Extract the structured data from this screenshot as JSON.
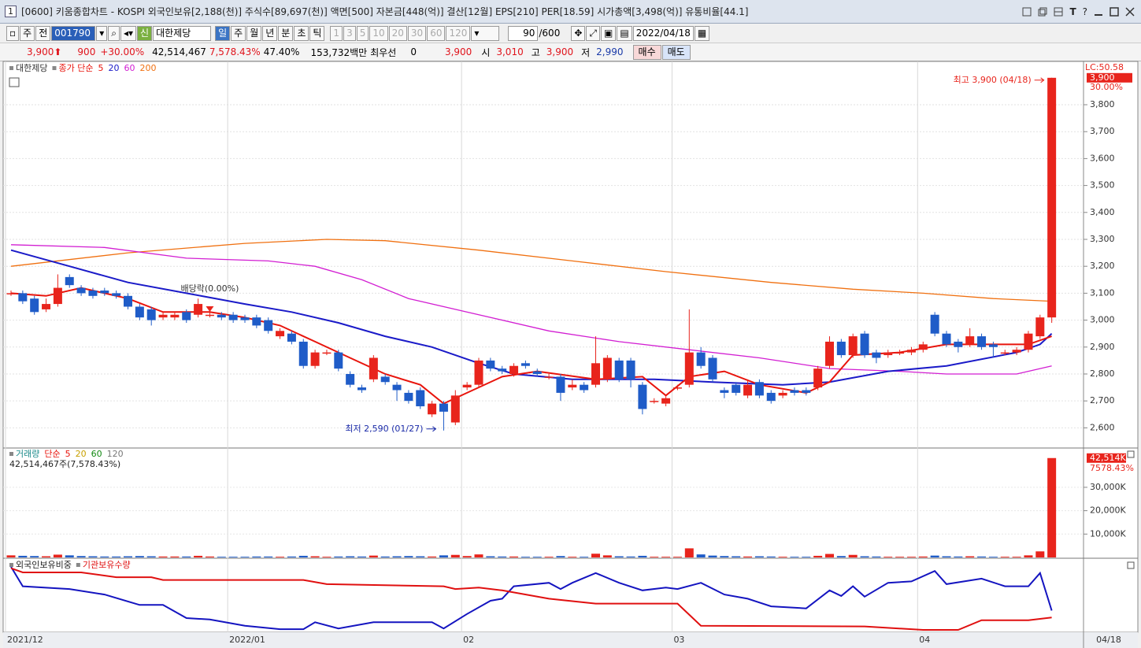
{
  "window": {
    "badge": "1",
    "title": "[0600] 키움종합차트 - KOSPI 외국인보유[2,188(천)] 주식수[89,697(천)] 액면[500] 자본금[448(억)] 결산[12월] EPS[210] PER[18.59] 시가총액[3,498(억)] 유통비율[44.1]",
    "icons": [
      "T",
      "?"
    ]
  },
  "toolbar": {
    "buttons": [
      "주",
      "전"
    ],
    "code": "001790",
    "badge": "신",
    "stock": "대한제당",
    "periods": [
      "일",
      "주",
      "월",
      "년",
      "분",
      "초",
      "틱"
    ],
    "minutes": [
      "1",
      "3",
      "5",
      "10",
      "20",
      "30",
      "60",
      "120"
    ],
    "count": "90",
    "total": "/600",
    "date": "2022/04/18"
  },
  "quote": {
    "price": "3,900",
    "change": "900",
    "rate": "+30.00%",
    "volume": "42,514,467",
    "vol_rate": "7,578.43%",
    "turnover": "47.40%",
    "amount": "153,732백만",
    "best": "최우선",
    "best_qty": "0",
    "bid": "3,900",
    "open_label": "시",
    "open": "3,010",
    "high_label": "고",
    "high": "3,900",
    "low_label": "저",
    "low": "2,990",
    "buy": "매수",
    "sell": "매도"
  },
  "chart_data": [
    {
      "type": "candlestick",
      "name": "대한제당",
      "ma_label": "종가 단순",
      "up_color": "#e8241c",
      "down_color": "#1f5cc8",
      "xticks": [
        {
          "value": 0,
          "label": "2021/12"
        },
        {
          "value": 19,
          "label": "2022/01"
        },
        {
          "value": 39,
          "label": "02"
        },
        {
          "value": 57,
          "label": "03"
        },
        {
          "value": 78,
          "label": "04"
        }
      ],
      "end_label": "04/18",
      "open": [
        3100,
        3100,
        3080,
        3040,
        3060,
        3160,
        3120,
        3110,
        3110,
        3100,
        3090,
        3050,
        3040,
        3010,
        3010,
        3030,
        3020,
        3020,
        3020,
        3020,
        3010,
        3010,
        3000,
        2940,
        2950,
        2920,
        2830,
        2880,
        2880,
        2800,
        2750,
        2780,
        2790,
        2760,
        2730,
        2740,
        2650,
        2690,
        2620,
        2750,
        2760,
        2850,
        2820,
        2800,
        2840,
        2810,
        2790,
        2790,
        2750,
        2760,
        2760,
        2780,
        2850,
        2850,
        2760,
        2700,
        2690,
        2750,
        2760,
        2880,
        2860,
        2740,
        2760,
        2720,
        2770,
        2730,
        2720,
        2740,
        2740,
        2750,
        2830,
        2920,
        2870,
        2950,
        2880,
        2870,
        2880,
        2880,
        2890,
        3020,
        2950,
        2920,
        2910,
        2940,
        2910,
        2880,
        2880,
        2890,
        2940,
        3010
      ],
      "high": [
        3110,
        3110,
        3090,
        3080,
        3170,
        3170,
        3130,
        3120,
        3120,
        3110,
        3100,
        3060,
        3050,
        3030,
        3030,
        3040,
        3080,
        3030,
        3030,
        3030,
        3020,
        3020,
        3010,
        2970,
        2960,
        2930,
        2890,
        2890,
        2890,
        2810,
        2760,
        2870,
        2800,
        2770,
        2740,
        2750,
        2700,
        2700,
        2740,
        2770,
        2860,
        2860,
        2830,
        2840,
        2850,
        2820,
        2800,
        2800,
        2780,
        2770,
        2940,
        2870,
        2860,
        2860,
        2770,
        2710,
        2720,
        2760,
        3040,
        2900,
        2870,
        2750,
        2770,
        2780,
        2780,
        2740,
        2740,
        2750,
        2750,
        2830,
        2940,
        2930,
        2950,
        2960,
        2890,
        2890,
        2890,
        2900,
        2920,
        3030,
        2960,
        2930,
        2970,
        2950,
        2920,
        2890,
        2900,
        2960,
        3020,
        3900
      ],
      "low": [
        3090,
        3060,
        3020,
        3030,
        3050,
        3120,
        3090,
        3080,
        3090,
        3080,
        3040,
        3000,
        2980,
        3000,
        3000,
        2990,
        3010,
        3010,
        3000,
        2990,
        2990,
        2970,
        2950,
        2930,
        2910,
        2820,
        2820,
        2870,
        2810,
        2750,
        2730,
        2770,
        2760,
        2700,
        2690,
        2670,
        2640,
        2590,
        2610,
        2740,
        2750,
        2810,
        2800,
        2790,
        2820,
        2790,
        2780,
        2700,
        2740,
        2730,
        2750,
        2770,
        2770,
        2750,
        2650,
        2690,
        2680,
        2740,
        2750,
        2820,
        2770,
        2710,
        2720,
        2710,
        2710,
        2690,
        2710,
        2720,
        2720,
        2740,
        2820,
        2860,
        2860,
        2860,
        2840,
        2860,
        2870,
        2870,
        2880,
        2940,
        2900,
        2880,
        2900,
        2890,
        2860,
        2870,
        2870,
        2880,
        2930,
        2990
      ],
      "close": [
        3100,
        3070,
        3030,
        3060,
        3120,
        3130,
        3100,
        3090,
        3100,
        3090,
        3050,
        3010,
        3000,
        3020,
        3020,
        3000,
        3060,
        3020,
        3010,
        3000,
        3000,
        2980,
        2960,
        2960,
        2920,
        2830,
        2880,
        2880,
        2820,
        2760,
        2740,
        2860,
        2770,
        2740,
        2700,
        2680,
        2690,
        2660,
        2720,
        2760,
        2850,
        2820,
        2810,
        2830,
        2830,
        2800,
        2790,
        2730,
        2760,
        2740,
        2840,
        2860,
        2780,
        2780,
        2670,
        2700,
        2710,
        2750,
        2880,
        2830,
        2780,
        2730,
        2730,
        2760,
        2720,
        2700,
        2730,
        2730,
        2730,
        2820,
        2920,
        2870,
        2940,
        2870,
        2860,
        2880,
        2880,
        2890,
        2910,
        2950,
        2910,
        2900,
        2940,
        2900,
        2900,
        2880,
        2890,
        2950,
        3010,
        3900
      ],
      "series": [
        {
          "name": "5",
          "color": "#e8140c",
          "x": [
            0,
            3,
            6,
            10,
            13,
            17,
            20,
            23,
            26,
            29,
            32,
            35,
            37,
            39,
            42,
            45,
            50,
            54,
            56,
            58,
            61,
            64,
            68,
            70,
            72,
            76,
            80,
            84,
            87,
            89
          ],
          "values": [
            3100,
            3090,
            3120,
            3080,
            3030,
            3030,
            3010,
            2980,
            2920,
            2860,
            2800,
            2760,
            2690,
            2730,
            2790,
            2810,
            2780,
            2790,
            2720,
            2790,
            2810,
            2760,
            2730,
            2770,
            2870,
            2880,
            2910,
            2910,
            2910,
            2940
          ]
        },
        {
          "name": "20",
          "color": "#1a1ac8",
          "x": [
            0,
            5,
            10,
            15,
            20,
            24,
            28,
            32,
            36,
            40,
            43,
            48,
            55,
            60,
            66,
            70,
            75,
            80,
            86,
            88,
            89
          ],
          "values": [
            3260,
            3200,
            3140,
            3100,
            3060,
            3030,
            2990,
            2940,
            2900,
            2840,
            2800,
            2780,
            2780,
            2770,
            2760,
            2770,
            2810,
            2830,
            2880,
            2910,
            2950
          ]
        },
        {
          "name": "60",
          "color": "#d21ed2",
          "x": [
            0,
            8,
            15,
            22,
            26,
            30,
            34,
            40,
            46,
            52,
            58,
            64,
            70,
            76,
            80,
            86,
            89
          ],
          "values": [
            3280,
            3270,
            3230,
            3220,
            3200,
            3150,
            3080,
            3020,
            2960,
            2920,
            2890,
            2860,
            2820,
            2810,
            2800,
            2800,
            2830
          ]
        },
        {
          "name": "200",
          "color": "#f07010",
          "x": [
            0,
            10,
            20,
            27,
            32,
            40,
            48,
            56,
            65,
            72,
            78,
            84,
            89
          ],
          "values": [
            3200,
            3250,
            3285,
            3300,
            3295,
            3260,
            3220,
            3180,
            3140,
            3115,
            3100,
            3080,
            3070
          ]
        }
      ],
      "ylim": [
        2528,
        3955
      ],
      "yticks": [
        {
          "value": 2600,
          "label": "2,600"
        },
        {
          "value": 2700,
          "label": "2,700"
        },
        {
          "value": 2800,
          "label": "2,800"
        },
        {
          "value": 2900,
          "label": "2,900"
        },
        {
          "value": 3000,
          "label": "3,000"
        },
        {
          "value": 3100,
          "label": "3,100"
        },
        {
          "value": 3200,
          "label": "3,200"
        },
        {
          "value": 3300,
          "label": "3,300"
        },
        {
          "value": 3400,
          "label": "3,400"
        },
        {
          "value": 3500,
          "label": "3,500"
        },
        {
          "value": 3600,
          "label": "3,600"
        },
        {
          "value": 3700,
          "label": "3,700"
        },
        {
          "value": 3800,
          "label": "3,800"
        }
      ],
      "grid": true,
      "lc": "LC:50.58",
      "last_label": "3,900",
      "last_rate": "30.00%",
      "annotations": [
        {
          "text": "배당락(0.00%)",
          "x": 17
        },
        {
          "text": "최저 2,590 (01/27)",
          "x": 37,
          "value": 2590
        },
        {
          "text": "최고 3,900 (04/18)",
          "x": 89,
          "value": 3900
        }
      ]
    },
    {
      "type": "bar",
      "title": "거래량",
      "ma_label": "단순",
      "legend": [
        {
          "name": "5",
          "color": "#e8140c"
        },
        {
          "name": "20",
          "color": "#c8a000"
        },
        {
          "name": "60",
          "color": "#118811"
        },
        {
          "name": "120",
          "color": "#777777"
        }
      ],
      "caption": "42,514,467주(7,578.43%)",
      "values": [
        900,
        700,
        600,
        500,
        1200,
        900,
        600,
        500,
        400,
        400,
        500,
        600,
        500,
        400,
        400,
        400,
        700,
        400,
        300,
        300,
        300,
        400,
        400,
        300,
        400,
        700,
        500,
        300,
        400,
        500,
        400,
        800,
        400,
        500,
        600,
        500,
        400,
        900,
        1100,
        600,
        1300,
        500,
        400,
        400,
        300,
        300,
        300,
        600,
        300,
        300,
        1600,
        900,
        500,
        400,
        700,
        300,
        300,
        300,
        3900,
        1300,
        800,
        600,
        500,
        400,
        500,
        400,
        300,
        300,
        300,
        700,
        1500,
        600,
        1100,
        500,
        400,
        300,
        300,
        300,
        400,
        800,
        500,
        400,
        500,
        400,
        300,
        300,
        300,
        900,
        2600,
        42514
      ],
      "ylim": [
        0,
        45800
      ],
      "yticks": [
        {
          "value": 10000,
          "label": "10,000K"
        },
        {
          "value": 20000,
          "label": "20,000K"
        },
        {
          "value": 30000,
          "label": "30,000K"
        }
      ],
      "last_label": "42,514K",
      "last_rate": "7578.43%"
    },
    {
      "type": "line",
      "series": [
        {
          "name": "외국인보유비중",
          "color": "#1414c0",
          "x": [
            0,
            1,
            5,
            8,
            11,
            13,
            15,
            17,
            20,
            23,
            25,
            26,
            28,
            31,
            34,
            36,
            37,
            39,
            41,
            42,
            43,
            46,
            47,
            48,
            50,
            52,
            54,
            56,
            57,
            59,
            61,
            63,
            65,
            68,
            70,
            71,
            72,
            73,
            75,
            77,
            79,
            80,
            83,
            85,
            87,
            88,
            89
          ],
          "values": [
            91,
            63,
            59,
            51,
            36,
            36,
            17,
            15,
            6,
            1,
            1,
            11,
            2,
            11,
            11,
            11,
            2,
            23,
            42,
            45,
            63,
            68,
            59,
            68,
            82,
            68,
            57,
            61,
            59,
            68,
            51,
            45,
            34,
            31,
            57,
            49,
            63,
            48,
            68,
            70,
            85,
            66,
            74,
            63,
            63,
            82,
            28
          ]
        },
        {
          "name": "기관보유수량",
          "color": "#e01010",
          "x": [
            0,
            1,
            6,
            9,
            12,
            13,
            25,
            27,
            37,
            38,
            40,
            42,
            46,
            50,
            57,
            59,
            73,
            78,
            81,
            83,
            87,
            89
          ],
          "values": [
            89,
            83,
            83,
            76,
            76,
            72,
            72,
            66,
            63,
            59,
            61,
            57,
            45,
            38,
            38,
            6,
            5,
            0,
            0,
            14,
            14,
            18
          ]
        }
      ],
      "ylim": [
        0,
        100
      ]
    }
  ]
}
